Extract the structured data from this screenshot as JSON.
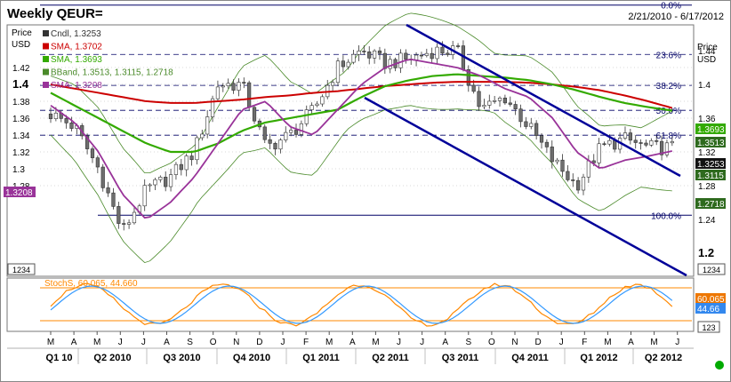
{
  "header": {
    "title": "Weekly QEUR=",
    "date_range": "2/21/2010 - 6/17/2012"
  },
  "axes": {
    "left_label_1": "Price",
    "left_label_2": "USD",
    "right_label_1": "Price",
    "right_label_2": "USD",
    "left_ticks": [
      "1.42",
      "1.4",
      "1.38",
      "1.36",
      "1.34",
      "1.32",
      "1.3",
      "1.28"
    ],
    "left_tick_values": [
      1.42,
      1.4,
      1.38,
      1.36,
      1.34,
      1.32,
      1.3,
      1.28
    ],
    "right_ticks": [
      "1.44",
      "1.4",
      "1.36",
      "1.32",
      "1.28",
      "1.24",
      "1.2"
    ],
    "right_tick_values": [
      1.44,
      1.4,
      1.36,
      1.32,
      1.28,
      1.24,
      1.2
    ],
    "scale_box_price": "1234",
    "scale_box_stoch": "123"
  },
  "legend": {
    "candle": "Cndl, 1.3253",
    "sma_long": "SMA, 1.3702",
    "sma_mid": "SMA, 1.3693",
    "bband": "BBand, 1.3513, 1.3115, 1.2718",
    "sma_short": "SMA, 1.3208",
    "stoch": "StochS, 60.065, 44.660"
  },
  "value_tags": {
    "left_sma": "1.3208",
    "right_1": "1.3693",
    "right_2": "1.3513",
    "right_3": "1.3253",
    "right_4": "1.3115",
    "right_5": "1.2718",
    "stoch_1": "60.065",
    "stoch_2": "44.66"
  },
  "fib_labels": [
    "0.0%",
    "23.6%",
    "38.2%",
    "50.0%",
    "61.8%",
    "100.0%"
  ],
  "fib_levels": [
    1.494,
    1.4355,
    1.3988,
    1.3693,
    1.3398,
    1.245
  ],
  "months": [
    "M",
    "A",
    "M",
    "J",
    "J",
    "A",
    "S",
    "O",
    "N",
    "D",
    "J",
    "F",
    "M",
    "A",
    "M",
    "J",
    "J",
    "A",
    "S",
    "O",
    "N",
    "D",
    "J",
    "F",
    "M",
    "A",
    "M",
    "J"
  ],
  "quarters": [
    "Q1 10",
    "Q2 2010",
    "Q3 2010",
    "Q4 2010",
    "Q1 2011",
    "Q2 2011",
    "Q3 2011",
    "Q4 2011",
    "Q1 2012",
    "Q2 2012"
  ],
  "colors": {
    "candle": "#6e6e6e",
    "sma_long": "#cc0000",
    "sma_mid": "#33aa00",
    "bband": "#4a8a2a",
    "sma_short": "#993399",
    "fib": "#000066",
    "channel": "#000099",
    "stoch_k": "#ff8800",
    "stoch_d": "#3399ff",
    "status_dot": "#00aa00"
  },
  "chart_data": {
    "type": "line",
    "title": "Weekly QEUR=",
    "x": [
      "2010-03",
      "2010-04",
      "2010-05",
      "2010-06",
      "2010-07",
      "2010-08",
      "2010-09",
      "2010-10",
      "2010-11",
      "2010-12",
      "2011-01",
      "2011-02",
      "2011-03",
      "2011-04",
      "2011-05",
      "2011-06",
      "2011-07",
      "2011-08",
      "2011-09",
      "2011-10",
      "2011-11",
      "2011-12",
      "2012-01",
      "2012-02",
      "2012-03",
      "2012-04",
      "2012-05"
    ],
    "series": [
      {
        "name": "Cndl",
        "values": [
          1.365,
          1.35,
          1.3,
          1.225,
          1.275,
          1.29,
          1.32,
          1.4,
          1.4,
          1.325,
          1.34,
          1.37,
          1.42,
          1.44,
          1.425,
          1.43,
          1.44,
          1.44,
          1.37,
          1.385,
          1.35,
          1.31,
          1.28,
          1.325,
          1.335,
          1.325,
          1.325
        ]
      },
      {
        "name": "SMA",
        "values": [
          1.4,
          1.395,
          1.39,
          1.385,
          1.38,
          1.378,
          1.378,
          1.38,
          1.382,
          1.385,
          1.387,
          1.39,
          1.392,
          1.395,
          1.398,
          1.4,
          1.402,
          1.403,
          1.403,
          1.403,
          1.402,
          1.4,
          1.397,
          1.393,
          1.387,
          1.38,
          1.372
        ]
      },
      {
        "name": "SMA",
        "values": [
          1.39,
          1.375,
          1.36,
          1.345,
          1.33,
          1.32,
          1.32,
          1.33,
          1.345,
          1.355,
          1.36,
          1.365,
          1.37,
          1.385,
          1.398,
          1.405,
          1.41,
          1.412,
          1.41,
          1.408,
          1.405,
          1.4,
          1.393,
          1.385,
          1.378,
          1.373,
          1.369
        ]
      },
      {
        "name": "SMA",
        "values": [
          1.375,
          1.355,
          1.32,
          1.27,
          1.24,
          1.26,
          1.29,
          1.33,
          1.37,
          1.38,
          1.35,
          1.34,
          1.37,
          1.4,
          1.42,
          1.43,
          1.425,
          1.42,
          1.41,
          1.395,
          1.385,
          1.36,
          1.32,
          1.3,
          1.31,
          1.315,
          1.321
        ]
      }
    ],
    "stochastic": {
      "name": "StochS",
      "k": 60.065,
      "d": 44.66
    },
    "ylim": [
      1.2,
      1.45
    ]
  }
}
